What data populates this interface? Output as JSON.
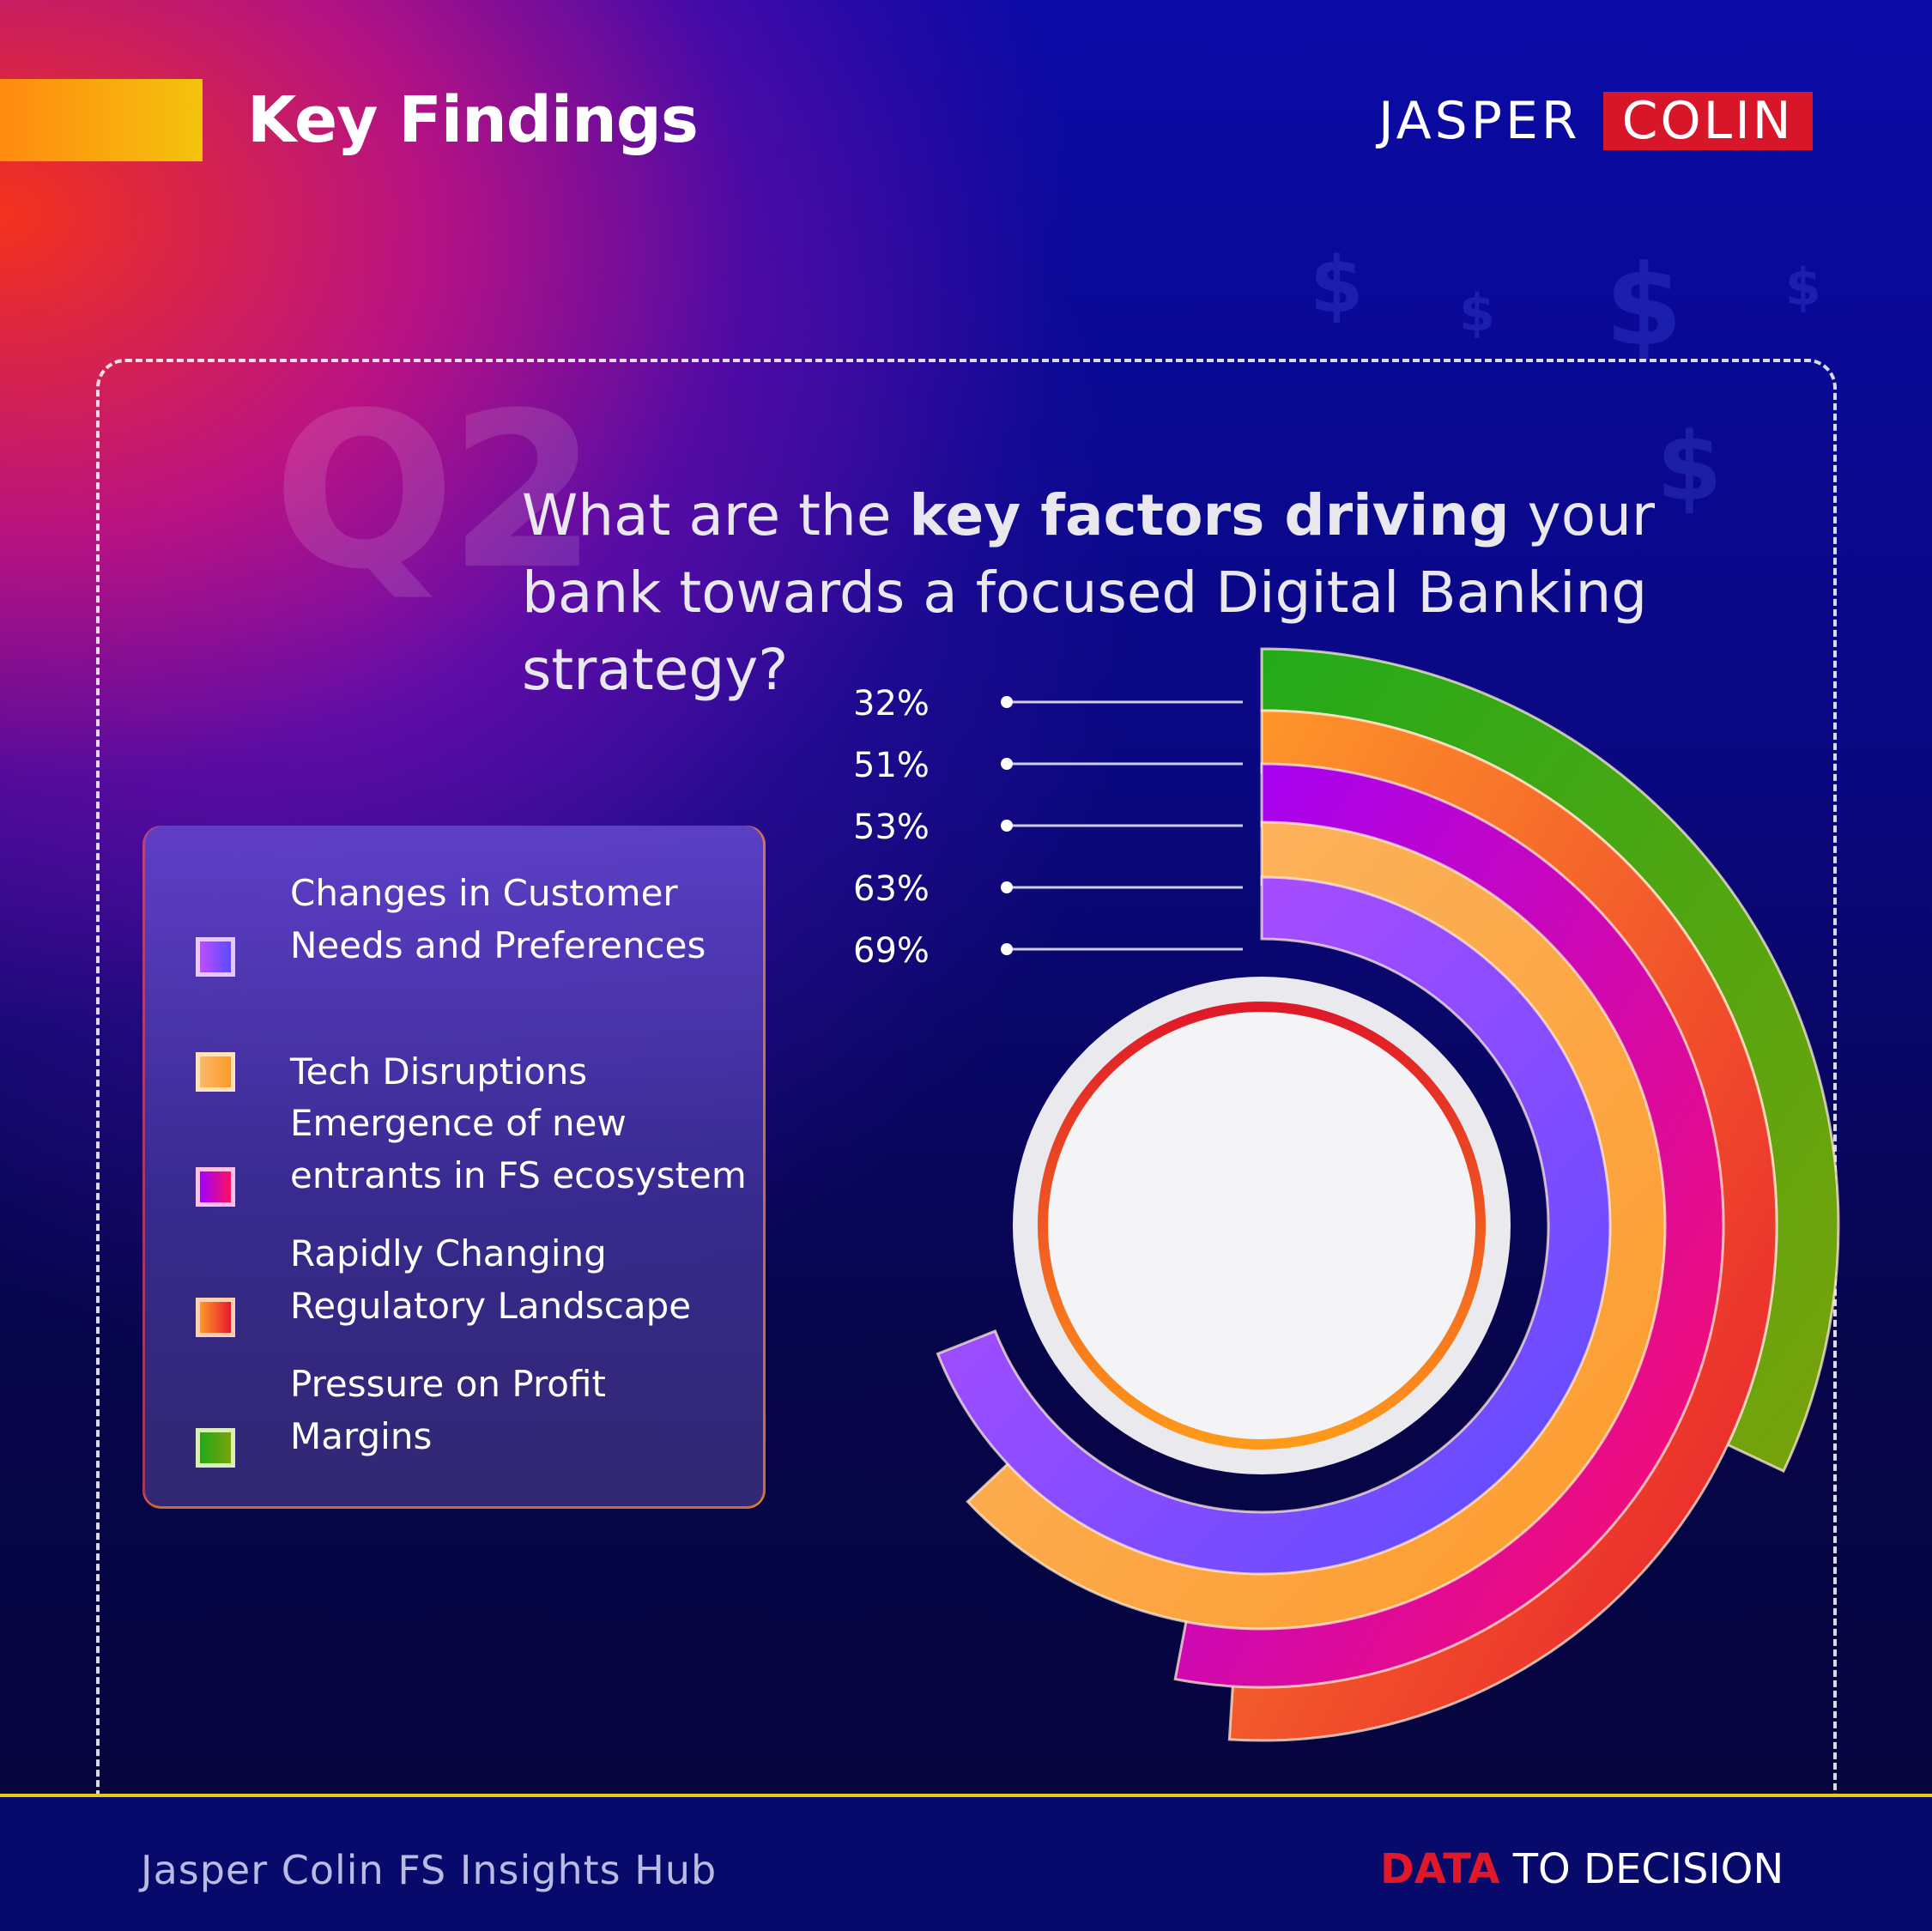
{
  "header": {
    "title": "Key Findings",
    "logo_left": "JASPER",
    "logo_right": "COLIN"
  },
  "question": {
    "number": "Q2",
    "text_pre": "What are the ",
    "text_bold": "key factors driving",
    "text_post": " your bank towards a focused Digital Banking strategy?"
  },
  "colors": {
    "accent_bar": "#f3c40c",
    "logo_red": "#d7162a",
    "footer_red": "#e01828"
  },
  "chart_data": {
    "type": "radial-bar",
    "series": [
      {
        "label": "Changes in Customer Needs and Preferences",
        "value": 69,
        "value_label": "69%",
        "color_start": "#c04cff",
        "color_end": "#5a4cff"
      },
      {
        "label": "Tech Disruptions",
        "value": 63,
        "value_label": "63%",
        "color_start": "#fcb868",
        "color_end": "#fc9a2a"
      },
      {
        "label": "Emergence of new entrants in FS ecosystem",
        "value": 53,
        "value_label": "53%",
        "color_start": "#a000ff",
        "color_end": "#ff1060"
      },
      {
        "label": "Rapidly Changing Regulatory Landscape",
        "value": 51,
        "value_label": "51%",
        "color_start": "#ff9a2a",
        "color_end": "#e6182c"
      },
      {
        "label": "Pressure on Profit Margins",
        "value": 32,
        "value_label": "32%",
        "color_start": "#22aa1a",
        "color_end": "#7aa20a"
      }
    ]
  },
  "legend": {
    "items": [
      {
        "label": "Changes in Customer Needs and Preferences"
      },
      {
        "label": "Tech Disruptions"
      },
      {
        "label": "Emergence of new entrants in FS ecosystem"
      },
      {
        "label": "Rapidly Changing Regulatory Landscape"
      },
      {
        "label": "Pressure on Profit Margins"
      }
    ]
  },
  "footer": {
    "left_text": "Jasper Colin FS Insights Hub",
    "right_red": "DATA",
    "right_white": " TO DECISION"
  }
}
